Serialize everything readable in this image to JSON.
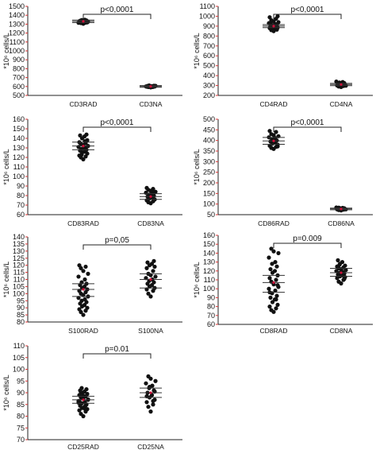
{
  "chart_data": [
    {
      "type": "scatter",
      "ylabel": "*10⁶ cells/L",
      "ylim": [
        500,
        1500
      ],
      "yticks": [
        500,
        600,
        700,
        800,
        900,
        1000,
        1100,
        1200,
        1300,
        1400,
        1500
      ],
      "categories": [
        "CD3RAD",
        "CD3NA"
      ],
      "pvalue": "p<0,0001",
      "groups": [
        {
          "points": [
            1305,
            1312,
            1318,
            1322,
            1326,
            1330,
            1334,
            1338,
            1342,
            1346,
            1350,
            1316,
            1328,
            1336,
            1324,
            1340,
            1332,
            1320,
            1344,
            1314
          ],
          "mean": 1332,
          "ci": [
            1318,
            1346
          ]
        },
        {
          "points": [
            590,
            594,
            596,
            598,
            600,
            602,
            604,
            606,
            608,
            612,
            595,
            601,
            607,
            599,
            603
          ],
          "mean": 601,
          "ci": [
            592,
            610
          ]
        }
      ]
    },
    {
      "type": "scatter",
      "ylabel": "*10⁶ cells/L",
      "ylim": [
        200,
        1100
      ],
      "yticks": [
        200,
        300,
        400,
        500,
        600,
        700,
        800,
        900,
        1000,
        1100
      ],
      "categories": [
        "CD4RAD",
        "CD4NA"
      ],
      "pvalue": "p<0,0001",
      "groups": [
        {
          "points": [
            850,
            860,
            870,
            880,
            885,
            890,
            895,
            900,
            905,
            910,
            920,
            930,
            940,
            950,
            960,
            975,
            990,
            1000,
            875,
            915,
            935,
            865
          ],
          "mean": 900,
          "ci": [
            885,
            915
          ]
        },
        {
          "points": [
            285,
            290,
            295,
            300,
            305,
            310,
            315,
            320,
            325,
            330,
            335,
            340,
            298,
            312,
            322
          ],
          "mean": 310,
          "ci": [
            298,
            322
          ]
        }
      ]
    },
    {
      "type": "scatter",
      "ylabel": "*10⁶ cells/L",
      "ylim": [
        60,
        160
      ],
      "yticks": [
        60,
        70,
        80,
        90,
        100,
        110,
        120,
        130,
        140,
        150,
        160
      ],
      "categories": [
        "CD83RAD",
        "CD83NA"
      ],
      "pvalue": "p<0,0001",
      "groups": [
        {
          "points": [
            118,
            120,
            121,
            122,
            124,
            125,
            126,
            127,
            128,
            129,
            130,
            131,
            132,
            133,
            134,
            135,
            136,
            138,
            140,
            142,
            143,
            144,
            123,
            137
          ],
          "mean": 132,
          "ci": [
            128,
            136
          ]
        },
        {
          "points": [
            72,
            73,
            74,
            75,
            76,
            77,
            78,
            79,
            80,
            81,
            82,
            83,
            84,
            85,
            86,
            87,
            88,
            76,
            80,
            84
          ],
          "mean": 79,
          "ci": [
            76,
            82
          ]
        }
      ]
    },
    {
      "type": "scatter",
      "ylabel": "*10⁶ cells/L",
      "ylim": [
        50,
        500
      ],
      "yticks": [
        50,
        100,
        150,
        200,
        250,
        300,
        350,
        400,
        450,
        500
      ],
      "categories": [
        "CD86RAD",
        "CD86NA"
      ],
      "pvalue": "p<0,0001",
      "groups": [
        {
          "points": [
            360,
            365,
            370,
            375,
            380,
            385,
            390,
            395,
            400,
            405,
            410,
            415,
            420,
            425,
            430,
            440,
            445,
            372,
            398,
            412
          ],
          "mean": 398,
          "ci": [
            382,
            414
          ]
        },
        {
          "points": [
            70,
            72,
            74,
            75,
            76,
            77,
            78,
            79,
            80,
            81,
            82,
            84,
            75,
            79,
            83
          ],
          "mean": 77,
          "ci": [
            73,
            81
          ]
        }
      ]
    },
    {
      "type": "scatter",
      "ylabel": "*10⁶ cells/L",
      "ylim": [
        80,
        140
      ],
      "yticks": [
        80,
        85,
        90,
        95,
        100,
        105,
        110,
        115,
        120,
        125,
        130,
        135,
        140
      ],
      "categories": [
        "S100RAD",
        "S100NA"
      ],
      "pvalue": "p=0,05",
      "groups": [
        {
          "points": [
            85,
            87,
            88,
            89,
            90,
            91,
            92,
            93,
            94,
            95,
            96,
            97,
            98,
            99,
            100,
            101,
            102,
            103,
            104,
            105,
            106,
            107,
            108,
            110,
            112,
            114,
            116,
            118,
            119,
            120
          ],
          "mean": 103,
          "ci": [
            98,
            107
          ]
        },
        {
          "points": [
            98,
            100,
            102,
            103,
            104,
            105,
            106,
            107,
            108,
            109,
            110,
            111,
            112,
            113,
            114,
            116,
            118,
            119,
            120,
            121,
            122,
            123
          ],
          "mean": 110,
          "ci": [
            104,
            114
          ]
        }
      ]
    },
    {
      "type": "scatter",
      "ylabel": "*10⁶ cells/L",
      "ylim": [
        60,
        160
      ],
      "yticks": [
        60,
        70,
        80,
        90,
        100,
        110,
        120,
        130,
        140,
        150,
        160
      ],
      "categories": [
        "CD8RAD",
        "CD8NA"
      ],
      "pvalue": "p=0.009",
      "groups": [
        {
          "points": [
            74,
            76,
            78,
            80,
            82,
            85,
            88,
            90,
            92,
            95,
            98,
            100,
            102,
            105,
            108,
            110,
            112,
            115,
            118,
            120,
            122,
            125,
            128,
            130,
            135,
            140,
            142,
            145,
            88,
            96,
            104
          ],
          "mean": 107,
          "ci": [
            96,
            115
          ]
        },
        {
          "points": [
            106,
            108,
            110,
            112,
            113,
            114,
            115,
            116,
            117,
            118,
            119,
            120,
            121,
            122,
            123,
            124,
            125,
            126,
            128,
            130,
            132,
            111,
            127
          ],
          "mean": 118,
          "ci": [
            114,
            123
          ]
        }
      ]
    },
    {
      "type": "scatter",
      "ylabel": "*10⁶ cells/L",
      "ylim": [
        70,
        110
      ],
      "yticks": [
        70,
        75,
        80,
        85,
        90,
        95,
        100,
        105,
        110
      ],
      "categories": [
        "CD25RAD",
        "CD25NA"
      ],
      "pvalue": "p=0.01",
      "groups": [
        {
          "points": [
            80,
            81,
            82,
            82.5,
            83,
            83.5,
            84,
            84.5,
            85,
            85.5,
            86,
            86.5,
            87,
            87.5,
            88,
            88.5,
            89,
            89.5,
            90,
            90.5,
            91,
            91.5,
            92,
            83.2,
            85.8,
            87.2,
            88.8,
            90.2,
            84.6,
            86.4
          ],
          "mean": 87,
          "ci": [
            85.5,
            88.5
          ]
        },
        {
          "points": [
            82,
            84,
            85,
            86,
            87,
            88,
            89,
            90,
            91,
            92,
            93,
            94,
            95,
            96,
            97,
            86.5,
            88.5,
            90.5,
            92.5
          ],
          "mean": 90,
          "ci": [
            88,
            92
          ]
        }
      ]
    }
  ]
}
